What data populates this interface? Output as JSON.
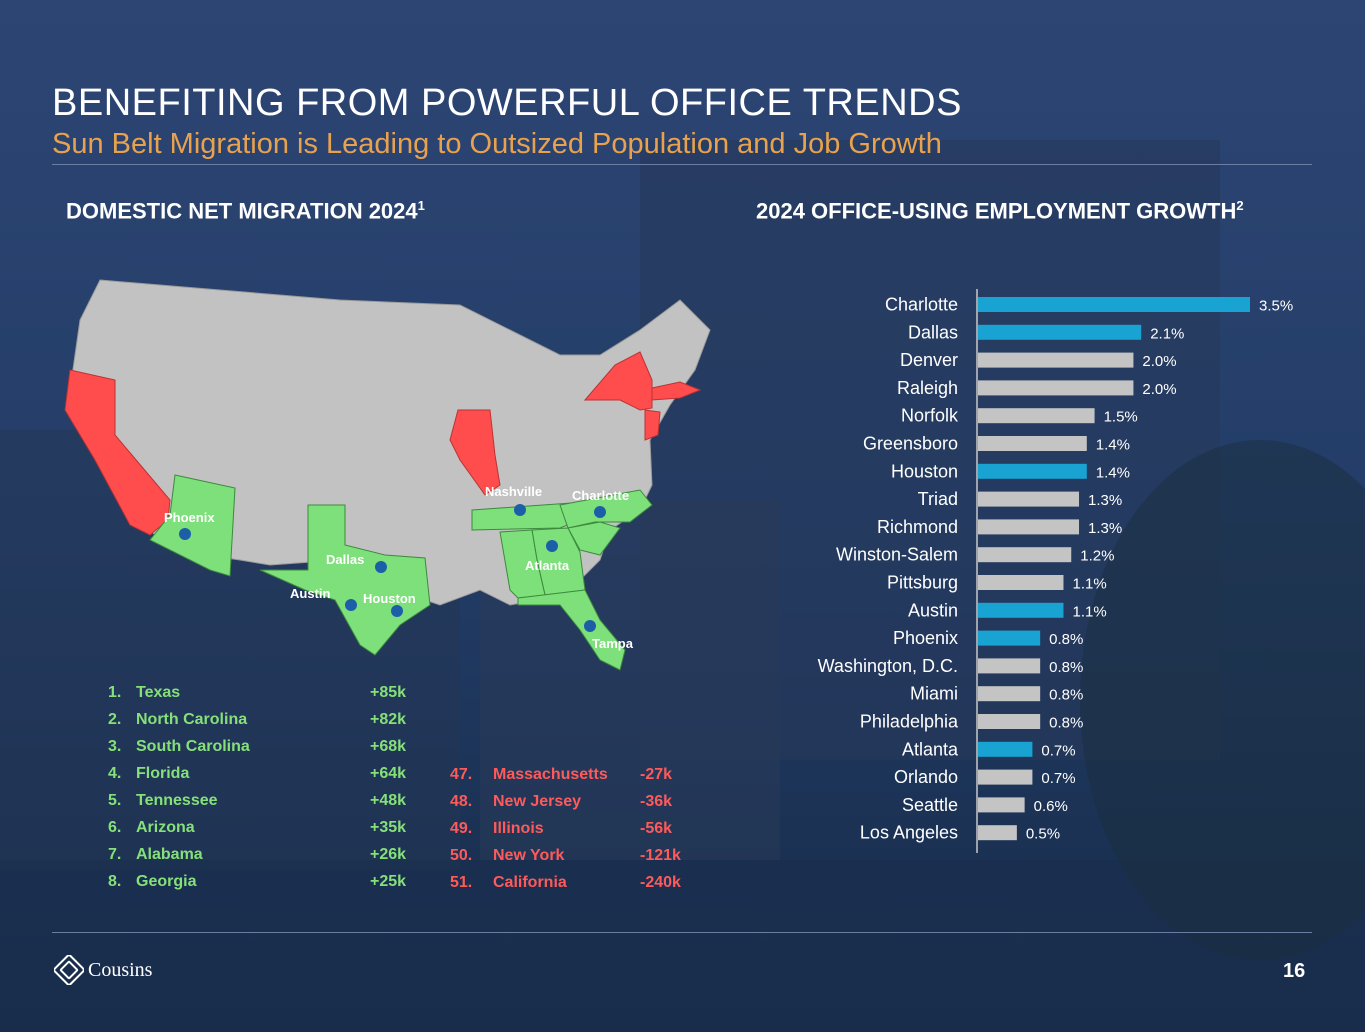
{
  "header": {
    "title": "BENEFITING FROM POWERFUL OFFICE TRENDS",
    "subtitle": "Sun Belt Migration is Leading to Outsized Population and Job Growth"
  },
  "left": {
    "title": "DOMESTIC NET MIGRATION 2024",
    "footnote": "1",
    "map_cities": [
      "Phoenix",
      "Dallas",
      "Austin",
      "Houston",
      "Nashville",
      "Charlotte",
      "Atlanta",
      "Tampa"
    ],
    "gainers": [
      {
        "rank": "1.",
        "state": "Texas",
        "value": "+85k"
      },
      {
        "rank": "2.",
        "state": "North Carolina",
        "value": "+82k"
      },
      {
        "rank": "3.",
        "state": "South Carolina",
        "value": "+68k"
      },
      {
        "rank": "4.",
        "state": "Florida",
        "value": "+64k"
      },
      {
        "rank": "5.",
        "state": "Tennessee",
        "value": "+48k"
      },
      {
        "rank": "6.",
        "state": "Arizona",
        "value": "+35k"
      },
      {
        "rank": "7.",
        "state": "Alabama",
        "value": "+26k"
      },
      {
        "rank": "8.",
        "state": "Georgia",
        "value": "+25k"
      }
    ],
    "losers": [
      {
        "rank": "47.",
        "state": "Massachusetts",
        "value": "-27k"
      },
      {
        "rank": "48.",
        "state": "New Jersey",
        "value": "-36k"
      },
      {
        "rank": "49.",
        "state": "Illinois",
        "value": "-56k"
      },
      {
        "rank": "50.",
        "state": "New York",
        "value": "-121k"
      },
      {
        "rank": "51.",
        "state": "California",
        "value": "-240k"
      }
    ]
  },
  "colors": {
    "gain": "#86e07a",
    "loss": "#ff5a5a",
    "highlight_bar": "#19a3d2",
    "other_bar": "#c4c4c4",
    "accent": "#e8a24e"
  },
  "chart_data": {
    "type": "bar",
    "orientation": "horizontal",
    "title": "2024 OFFICE-USING EMPLOYMENT GROWTH",
    "footnote": "2",
    "categories": [
      "Charlotte",
      "Dallas",
      "Denver",
      "Raleigh",
      "Norfolk",
      "Greensboro",
      "Houston",
      "Triad",
      "Richmond",
      "Winston-Salem",
      "Pittsburg",
      "Austin",
      "Phoenix",
      "Washington, D.C.",
      "Miami",
      "Philadelphia",
      "Atlanta",
      "Orlando",
      "Seattle",
      "Los Angeles"
    ],
    "values": [
      3.5,
      2.1,
      2.0,
      2.0,
      1.5,
      1.4,
      1.4,
      1.3,
      1.3,
      1.2,
      1.1,
      1.1,
      0.8,
      0.8,
      0.8,
      0.8,
      0.7,
      0.7,
      0.6,
      0.5
    ],
    "labels": [
      "3.5%",
      "2.1%",
      "2.0%",
      "2.0%",
      "1.5%",
      "1.4%",
      "1.4%",
      "1.3%",
      "1.3%",
      "1.2%",
      "1.1%",
      "1.1%",
      "0.8%",
      "0.8%",
      "0.8%",
      "0.8%",
      "0.7%",
      "0.7%",
      "0.6%",
      "0.5%"
    ],
    "highlighted": [
      "Charlotte",
      "Dallas",
      "Houston",
      "Austin",
      "Phoenix",
      "Atlanta"
    ],
    "xlim": [
      0,
      3.5
    ],
    "xlabel": "",
    "ylabel": ""
  },
  "footer": {
    "logo": "Cousins",
    "page": "16"
  }
}
